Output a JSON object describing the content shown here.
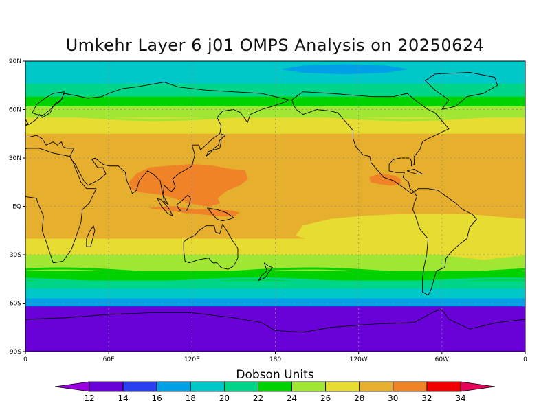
{
  "title": "Umkehr Layer 6 j01 OMPS Analysis on 20250624",
  "colors": {
    "bands": [
      "#9a00e0",
      "#6a00d8",
      "#2a40f0",
      "#00a0e6",
      "#00c8c8",
      "#00d68a",
      "#00d200",
      "#a0e632",
      "#e6dc32",
      "#e6af2d",
      "#f08228",
      "#f00000",
      "#e6005a"
    ],
    "coast": "#000000",
    "grid": "#888888"
  },
  "chart_data": {
    "type": "heatmap",
    "xlabel": "",
    "ylabel": "",
    "x_ticks": [
      "0",
      "60E",
      "120E",
      "180",
      "120W",
      "60W",
      "0"
    ],
    "y_ticks": [
      "90N",
      "60N",
      "30N",
      "EQ",
      "30S",
      "60S",
      "90S"
    ],
    "x_range": [
      0,
      360
    ],
    "y_range": [
      -90,
      90
    ],
    "colorbar": {
      "label": "Dobson Units",
      "ticks": [
        "12",
        "14",
        "16",
        "18",
        "20",
        "22",
        "24",
        "26",
        "28",
        "30",
        "32",
        "34"
      ]
    },
    "zonal_bands": [
      {
        "lat_from": 90,
        "lat_to": 76,
        "value": 19
      },
      {
        "lat_from": 76,
        "lat_to": 68,
        "value": 21
      },
      {
        "lat_from": 68,
        "lat_to": 62,
        "value": 23
      },
      {
        "lat_from": 62,
        "lat_to": 55,
        "value": 25
      },
      {
        "lat_from": 55,
        "lat_to": 45,
        "value": 27
      },
      {
        "lat_from": 45,
        "lat_to": 33,
        "value": 29
      },
      {
        "lat_from": 33,
        "lat_to": -12,
        "value": 29
      },
      {
        "lat_from": -12,
        "lat_to": -20,
        "value": 29
      },
      {
        "lat_from": -20,
        "lat_to": -30,
        "value": 27
      },
      {
        "lat_from": -30,
        "lat_to": -40,
        "value": 25
      },
      {
        "lat_from": -40,
        "lat_to": -46,
        "value": 23
      },
      {
        "lat_from": -46,
        "lat_to": -51,
        "value": 21
      },
      {
        "lat_from": -51,
        "lat_to": -57,
        "value": 19
      },
      {
        "lat_from": -57,
        "lat_to": -62,
        "value": 17
      },
      {
        "lat_from": -62,
        "lat_to": -90,
        "value": 13
      }
    ]
  }
}
